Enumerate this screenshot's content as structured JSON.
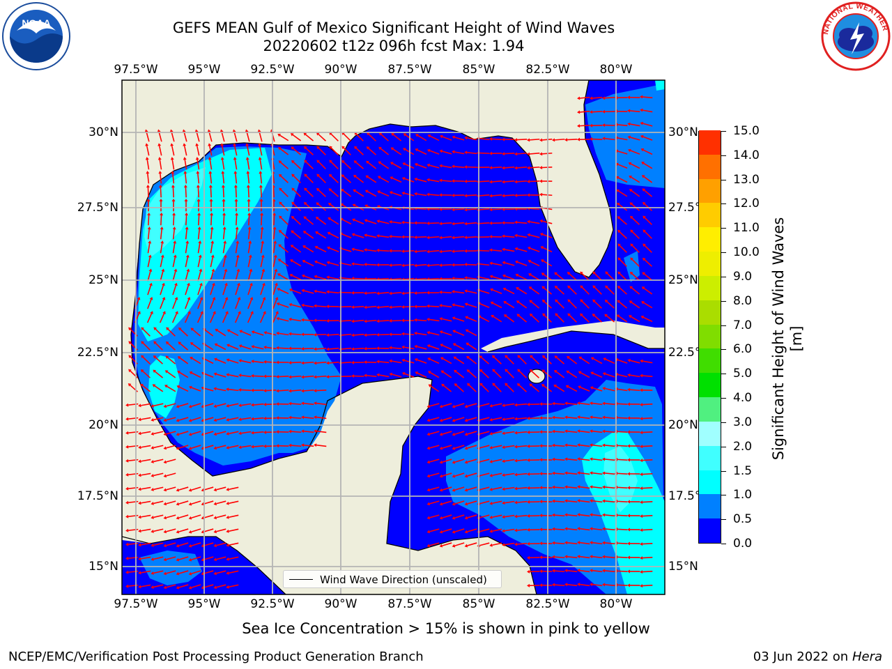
{
  "title": "GEFS MEAN Gulf of Mexico Significant Height of Wind Waves",
  "subtitle": "20220602 t12z 096h fcst   Max: 1.94",
  "x_tick_labels": [
    "97.5°W",
    "95°W",
    "92.5°W",
    "90°W",
    "87.5°W",
    "85°W",
    "82.5°W",
    "80°W"
  ],
  "y_tick_labels": [
    "30°N",
    "27.5°N",
    "25°N",
    "22.5°N",
    "20°N",
    "17.5°N",
    "15°N"
  ],
  "y_tick_labels_right": [
    "30°N",
    "27.5°",
    "25°N",
    "22.5°",
    "20°N",
    "17.5°",
    "15°N"
  ],
  "colorbar": {
    "title": "Significant Height of Wind Waves [m]",
    "tick_labels": [
      "0.0",
      "0.5",
      "1.0",
      "1.5",
      "2.0",
      "3.0",
      "4.0",
      "5.0",
      "6.0",
      "7.0",
      "8.0",
      "9.0",
      "10.0",
      "11.0",
      "12.0",
      "13.0",
      "14.0",
      "15.0"
    ],
    "colors": [
      "#0000ff",
      "#0080ff",
      "#00ffff",
      "#40ffff",
      "#a0ffff",
      "#50f080",
      "#00e000",
      "#40dd00",
      "#80dd00",
      "#aadd00",
      "#ccee00",
      "#eeee00",
      "#ffee00",
      "#ffcc00",
      "#ffa000",
      "#ff7000",
      "#ff3000",
      "#ff0000"
    ]
  },
  "legend": {
    "label": "Wind Wave Direction (unscaled)"
  },
  "footnote": "Sea Ice Concentration > 15% is shown in pink to yellow",
  "credit": "NCEP/EMC/Verification Post Processing Product Generation Branch",
  "date": "03 Jun 2022",
  "date_on": "on",
  "machine": "Hera",
  "logos": {
    "left": "noaa-logo",
    "right": "nws-logo",
    "left_text": "NOAA",
    "right_text": "NATIONAL WEATHER SERVICE"
  },
  "colors": {
    "land": "#eeeedc",
    "ocean_low": "#0000ff",
    "arrows": "#ff0000",
    "grid": "#b4b4b4"
  },
  "chart_data": {
    "type": "map",
    "extent_lon": [
      -98.0,
      -78.2
    ],
    "extent_lat": [
      14.0,
      31.8
    ],
    "max_value": 1.94,
    "levels": [
      0.0,
      0.5,
      1.0,
      1.5,
      2.0,
      3.0,
      4.0,
      5.0,
      6.0,
      7.0,
      8.0,
      9.0,
      10.0,
      11.0,
      12.0,
      13.0,
      14.0,
      15.0
    ],
    "grid": true
  }
}
